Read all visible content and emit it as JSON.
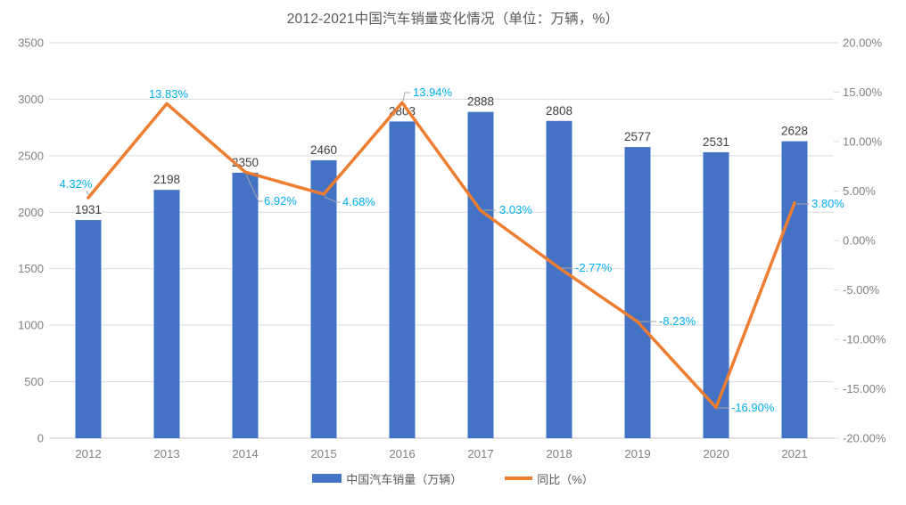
{
  "chart_data": {
    "type": "combo-bar-line",
    "title": "2012-2021中国汽车销量变化情况（单位：万辆，%）",
    "categories": [
      "2012",
      "2013",
      "2014",
      "2015",
      "2016",
      "2017",
      "2018",
      "2019",
      "2020",
      "2021"
    ],
    "series": [
      {
        "name": "中国汽车销量（万辆）",
        "type": "bar",
        "axis": "left",
        "color": "#4472C4",
        "values": [
          1931,
          2198,
          2350,
          2460,
          2803,
          2888,
          2808,
          2577,
          2531,
          2628
        ],
        "labels": [
          "1931",
          "2198",
          "2350",
          "2460",
          "2803",
          "2888",
          "2808",
          "2577",
          "2531",
          "2628"
        ],
        "label_color": "#404040"
      },
      {
        "name": "同比（%）",
        "type": "line",
        "axis": "right",
        "color": "#ED7D31",
        "values": [
          4.32,
          13.83,
          6.92,
          4.68,
          13.94,
          3.03,
          -2.77,
          -8.23,
          -16.9,
          3.8
        ],
        "labels": [
          "4.32%",
          "13.83%",
          "6.92%",
          "4.68%",
          "13.94%",
          "3.03%",
          "-2.77%",
          "-8.23%",
          "-16.90%",
          "3.80%"
        ],
        "label_color": "#00B0F0"
      }
    ],
    "left_axis": {
      "min": 0,
      "max": 3500,
      "step": 500,
      "ticks": [
        "0",
        "500",
        "1000",
        "1500",
        "2000",
        "2500",
        "3000",
        "3500"
      ]
    },
    "right_axis": {
      "min": -20,
      "max": 20,
      "step": 5,
      "ticks": [
        "-20.00%",
        "-15.00%",
        "-10.00%",
        "-5.00%",
        "0.00%",
        "5.00%",
        "10.00%",
        "15.00%",
        "20.00%"
      ]
    },
    "grid": true,
    "legend_position": "bottom",
    "colors": {
      "grid": "#D9D9D9",
      "axis_line": "#C6C6C6",
      "axis_text": "#808080",
      "title_text": "#595959",
      "leader_line": "#A6A6A6",
      "background": "#FFFFFF"
    }
  }
}
